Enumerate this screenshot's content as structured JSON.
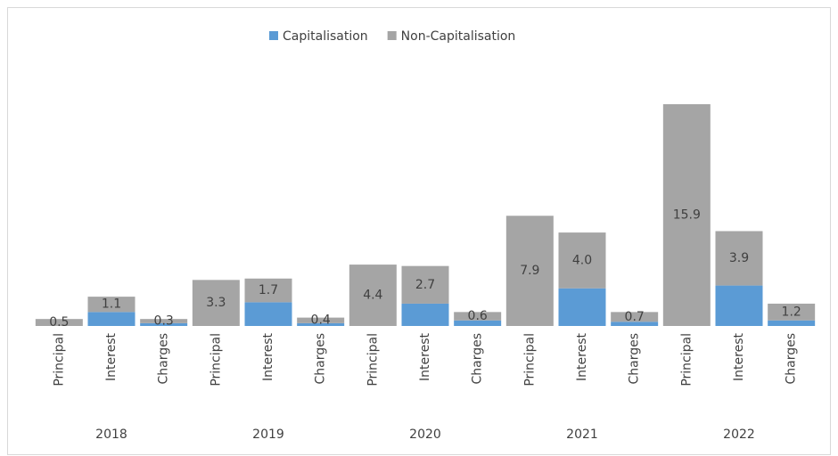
{
  "chart_data": {
    "type": "bar",
    "stacked": true,
    "categories": [
      "Principal",
      "Interest",
      "Charges",
      "Principal",
      "Interest",
      "Charges",
      "Principal",
      "Interest",
      "Charges",
      "Principal",
      "Interest",
      "Charges",
      "Principal",
      "Interest",
      "Charges"
    ],
    "groups": [
      "2018",
      "2019",
      "2020",
      "2021",
      "2022"
    ],
    "legend": "top",
    "series": [
      {
        "name": "Capitalisation",
        "color": "#5b9bd5",
        "values": [
          0,
          1.0,
          0.2,
          0,
          1.7,
          0.2,
          0,
          1.6,
          0.4,
          0,
          2.7,
          0.3,
          0,
          2.9,
          0.4
        ]
      },
      {
        "name": "Non-Capitalisation",
        "color": "#a5a5a5",
        "values": [
          0.5,
          1.1,
          0.3,
          3.3,
          1.7,
          0.4,
          4.4,
          2.7,
          0.6,
          7.9,
          4.0,
          0.7,
          15.9,
          3.9,
          1.2
        ],
        "value_labels": [
          "0.5",
          "1.1",
          "0.3",
          "3.3",
          "1.7",
          "0.4",
          "4.4",
          "2.7",
          "0.6",
          "7.9",
          "4.0",
          "0.7",
          "15.9",
          "3.9",
          "1.2"
        ]
      }
    ]
  }
}
